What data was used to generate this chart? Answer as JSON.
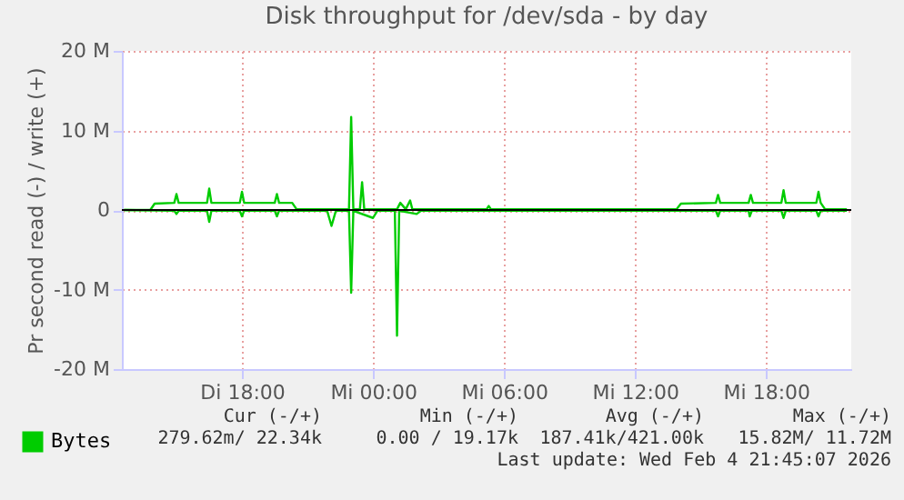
{
  "chart_data": {
    "type": "line",
    "title": "Disk throughput for /dev/sda - by day",
    "ylabel": "Pr second read (-) / write (+)",
    "xlim": [
      "2026-02-03T12:30",
      "2026-02-04T21:54"
    ],
    "xticks": [
      {
        "value": "2026-02-03T18:00",
        "label": "Di 18:00"
      },
      {
        "value": "2026-02-04T00:00",
        "label": "Mi 00:00"
      },
      {
        "value": "2026-02-04T06:00",
        "label": "Mi 06:00"
      },
      {
        "value": "2026-02-04T12:00",
        "label": "Mi 12:00"
      },
      {
        "value": "2026-02-04T18:00",
        "label": "Mi 18:00"
      }
    ],
    "ylim": [
      -20,
      20
    ],
    "yticks": [
      {
        "value": -20,
        "label": "-20 M"
      },
      {
        "value": -10,
        "label": "-10 M"
      },
      {
        "value": 0,
        "label": "0"
      },
      {
        "value": 10,
        "label": "10 M"
      },
      {
        "value": 20,
        "label": "20 M"
      }
    ],
    "grid": true,
    "legend": "bottom left",
    "line_style": "solid",
    "ref_lines": [
      {
        "axis": "y",
        "value": 0,
        "color": "#000000"
      }
    ],
    "series": [
      {
        "name": "Bytes",
        "color": "#00cc00",
        "x": [
          "2026-02-03T12:36",
          "2026-02-03T13:48",
          "2026-02-03T14:00",
          "2026-02-03T14:54",
          "2026-02-03T15:00",
          "2026-02-03T15:06",
          "2026-02-03T16:24",
          "2026-02-03T16:30",
          "2026-02-03T16:36",
          "2026-02-03T17:54",
          "2026-02-03T18:00",
          "2026-02-03T18:06",
          "2026-02-03T19:30",
          "2026-02-03T19:36",
          "2026-02-03T19:42",
          "2026-02-03T20:18",
          "2026-02-03T20:30",
          "2026-02-03T22:54",
          "2026-02-03T23:00",
          "2026-02-03T23:06",
          "2026-02-03T23:24",
          "2026-02-03T23:30",
          "2026-02-03T23:36",
          "2026-02-04T01:06",
          "2026-02-04T01:15",
          "2026-02-04T01:30",
          "2026-02-04T01:42",
          "2026-02-04T01:48",
          "2026-02-04T05:12",
          "2026-02-04T05:18",
          "2026-02-04T05:24",
          "2026-02-04T13:54",
          "2026-02-04T14:06",
          "2026-02-04T15:42",
          "2026-02-04T15:48",
          "2026-02-04T15:54",
          "2026-02-04T17:12",
          "2026-02-04T17:18",
          "2026-02-04T17:24",
          "2026-02-04T18:42",
          "2026-02-04T18:48",
          "2026-02-04T18:54",
          "2026-02-04T20:18",
          "2026-02-04T20:24",
          "2026-02-04T20:30",
          "2026-02-04T20:42",
          "2026-02-04T21:42"
        ],
        "values": [
          0,
          0,
          0.8,
          0.9,
          2.0,
          0.9,
          0.9,
          2.7,
          0.9,
          0.9,
          2.3,
          0.9,
          0.9,
          2.0,
          0.9,
          0.9,
          0.1,
          0.1,
          11.7,
          0.1,
          0.1,
          3.5,
          0.1,
          0.1,
          0.9,
          0.1,
          1.2,
          0.1,
          0.1,
          0.5,
          0.1,
          0.1,
          0.8,
          0.9,
          1.9,
          0.9,
          0.9,
          1.9,
          0.9,
          0.9,
          2.5,
          0.9,
          0.9,
          2.3,
          0.9,
          0.1,
          0.1
        ]
      },
      {
        "color": "#00cc00",
        "x": [
          "2026-02-03T12:36",
          "2026-02-03T14:54",
          "2026-02-03T15:00",
          "2026-02-03T15:06",
          "2026-02-03T16:24",
          "2026-02-03T16:30",
          "2026-02-03T16:36",
          "2026-02-03T17:54",
          "2026-02-03T18:00",
          "2026-02-03T18:06",
          "2026-02-03T19:30",
          "2026-02-03T19:36",
          "2026-02-03T19:42",
          "2026-02-03T21:54",
          "2026-02-03T22:06",
          "2026-02-03T22:18",
          "2026-02-03T22:54",
          "2026-02-03T23:00",
          "2026-02-03T23:06",
          "2026-02-04T00:00",
          "2026-02-04T00:12",
          "2026-02-04T01:00",
          "2026-02-04T01:06",
          "2026-02-04T01:12",
          "2026-02-04T02:00",
          "2026-02-04T02:12",
          "2026-02-04T15:42",
          "2026-02-04T15:48",
          "2026-02-04T15:54",
          "2026-02-04T17:12",
          "2026-02-04T17:15",
          "2026-02-04T17:21",
          "2026-02-04T18:42",
          "2026-02-04T18:48",
          "2026-02-04T18:54",
          "2026-02-04T20:18",
          "2026-02-04T20:24",
          "2026-02-04T20:30",
          "2026-02-04T21:42"
        ],
        "values": [
          0,
          -0.1,
          -0.5,
          -0.1,
          -0.1,
          -1.5,
          -0.1,
          -0.1,
          -0.8,
          -0.1,
          -0.1,
          -0.8,
          -0.1,
          -0.1,
          -2.0,
          -0.1,
          -0.1,
          -10.4,
          -0.1,
          -1.0,
          -0.1,
          -0.1,
          -15.8,
          -0.1,
          -0.5,
          -0.1,
          -0.1,
          -0.8,
          -0.1,
          -0.1,
          -0.8,
          -0.1,
          -0.1,
          -1.0,
          -0.1,
          -0.1,
          -0.8,
          -0.1,
          -0.1
        ]
      }
    ],
    "annotations": [
      "Cur (-/+)",
      "Min (-/+)",
      "Avg (-/+)",
      "Max (-/+)",
      "279.62m/ 22.34k",
      "0.00 / 19.17k",
      "187.41k/421.00k",
      "15.82M/ 11.72M",
      "Last update: Wed Feb  4 21:45:07 2026"
    ]
  }
}
